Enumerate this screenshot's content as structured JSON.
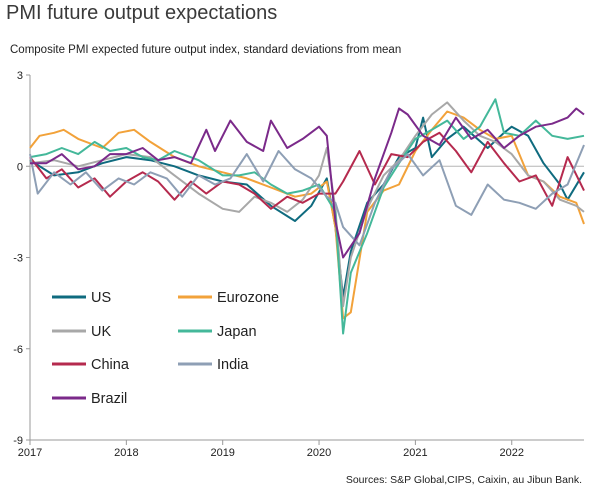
{
  "title": "PMI future output expectations",
  "subtitle": "Composite PMI expected future output index, standard deviations from mean",
  "source": "Sources: S&P Global,CIPS, Caixin, au Jibun Bank.",
  "chart_data": {
    "type": "line",
    "ylim": [
      -9,
      3
    ],
    "yticks": [
      "3",
      "0",
      "-3",
      "-6",
      "-9"
    ],
    "xlim": [
      2017,
      2022.75
    ],
    "xticks": [
      "2017",
      "2018",
      "2019",
      "2020",
      "2021",
      "2022"
    ],
    "legend": "bottom-left",
    "grid": false,
    "series": [
      {
        "name": "US",
        "color": "#0f6b7f",
        "values": [
          [
            2017.0,
            0.2
          ],
          [
            2017.25,
            -0.3
          ],
          [
            2017.5,
            -0.2
          ],
          [
            2017.75,
            0.1
          ],
          [
            2018.0,
            0.3
          ],
          [
            2018.25,
            0.2
          ],
          [
            2018.5,
            0.0
          ],
          [
            2018.75,
            -0.3
          ],
          [
            2019.0,
            -0.5
          ],
          [
            2019.25,
            -0.6
          ],
          [
            2019.5,
            -1.3
          ],
          [
            2019.75,
            -1.8
          ],
          [
            2019.92,
            -1.3
          ],
          [
            2020.08,
            -0.4
          ],
          [
            2020.17,
            -2.0
          ],
          [
            2020.25,
            -4.3
          ],
          [
            2020.33,
            -2.8
          ],
          [
            2020.5,
            -1.2
          ],
          [
            2020.67,
            -0.6
          ],
          [
            2020.83,
            0.3
          ],
          [
            2021.0,
            0.6
          ],
          [
            2021.08,
            1.6
          ],
          [
            2021.17,
            0.3
          ],
          [
            2021.33,
            0.9
          ],
          [
            2021.5,
            1.3
          ],
          [
            2021.75,
            0.6
          ],
          [
            2021.92,
            1.1
          ],
          [
            2022.0,
            1.3
          ],
          [
            2022.17,
            1.0
          ],
          [
            2022.33,
            0.1
          ],
          [
            2022.5,
            -0.6
          ],
          [
            2022.58,
            -1.1
          ],
          [
            2022.75,
            -0.2
          ]
        ]
      },
      {
        "name": "Eurozone",
        "color": "#f2a23a",
        "values": [
          [
            2017.0,
            0.6
          ],
          [
            2017.1,
            1.0
          ],
          [
            2017.25,
            1.1
          ],
          [
            2017.35,
            1.2
          ],
          [
            2017.5,
            0.9
          ],
          [
            2017.75,
            0.6
          ],
          [
            2017.92,
            1.1
          ],
          [
            2018.08,
            1.2
          ],
          [
            2018.25,
            0.8
          ],
          [
            2018.5,
            0.3
          ],
          [
            2018.75,
            0.0
          ],
          [
            2019.0,
            -0.2
          ],
          [
            2019.25,
            -0.4
          ],
          [
            2019.5,
            -0.7
          ],
          [
            2019.75,
            -1.0
          ],
          [
            2019.92,
            -0.9
          ],
          [
            2020.08,
            -0.5
          ],
          [
            2020.17,
            -2.0
          ],
          [
            2020.25,
            -5.0
          ],
          [
            2020.33,
            -4.8
          ],
          [
            2020.5,
            -1.5
          ],
          [
            2020.67,
            -0.8
          ],
          [
            2020.83,
            -0.6
          ],
          [
            2021.0,
            0.5
          ],
          [
            2021.17,
            1.2
          ],
          [
            2021.33,
            1.8
          ],
          [
            2021.5,
            1.6
          ],
          [
            2021.67,
            1.2
          ],
          [
            2021.83,
            0.9
          ],
          [
            2022.0,
            1.0
          ],
          [
            2022.17,
            -0.3
          ],
          [
            2022.33,
            -0.5
          ],
          [
            2022.5,
            -1.0
          ],
          [
            2022.67,
            -1.2
          ],
          [
            2022.75,
            -1.9
          ]
        ]
      },
      {
        "name": "UK",
        "color": "#a8a8a8",
        "values": [
          [
            2017.0,
            0.1
          ],
          [
            2017.25,
            0.2
          ],
          [
            2017.5,
            0.0
          ],
          [
            2017.75,
            0.2
          ],
          [
            2018.0,
            0.4
          ],
          [
            2018.25,
            0.3
          ],
          [
            2018.5,
            -0.3
          ],
          [
            2018.75,
            -0.9
          ],
          [
            2019.0,
            -1.4
          ],
          [
            2019.17,
            -1.5
          ],
          [
            2019.33,
            -1.0
          ],
          [
            2019.5,
            -1.2
          ],
          [
            2019.67,
            -1.5
          ],
          [
            2019.83,
            -1.1
          ],
          [
            2020.0,
            -0.3
          ],
          [
            2020.08,
            0.6
          ],
          [
            2020.17,
            -1.4
          ],
          [
            2020.25,
            -4.6
          ],
          [
            2020.33,
            -3.0
          ],
          [
            2020.5,
            -1.4
          ],
          [
            2020.67,
            -0.3
          ],
          [
            2020.83,
            0.2
          ],
          [
            2021.0,
            1.0
          ],
          [
            2021.17,
            1.7
          ],
          [
            2021.33,
            2.1
          ],
          [
            2021.5,
            1.5
          ],
          [
            2021.67,
            1.0
          ],
          [
            2021.83,
            0.8
          ],
          [
            2022.0,
            0.4
          ],
          [
            2022.17,
            -0.3
          ],
          [
            2022.33,
            -0.5
          ],
          [
            2022.5,
            -1.1
          ],
          [
            2022.67,
            -1.3
          ],
          [
            2022.75,
            -1.5
          ]
        ]
      },
      {
        "name": "Japan",
        "color": "#44b89a",
        "values": [
          [
            2017.0,
            0.3
          ],
          [
            2017.17,
            0.4
          ],
          [
            2017.33,
            0.6
          ],
          [
            2017.5,
            0.4
          ],
          [
            2017.67,
            0.8
          ],
          [
            2017.83,
            0.5
          ],
          [
            2018.0,
            0.6
          ],
          [
            2018.17,
            0.3
          ],
          [
            2018.33,
            0.2
          ],
          [
            2018.5,
            0.5
          ],
          [
            2018.75,
            0.2
          ],
          [
            2019.0,
            -0.3
          ],
          [
            2019.17,
            -0.3
          ],
          [
            2019.33,
            -0.2
          ],
          [
            2019.5,
            -0.6
          ],
          [
            2019.67,
            -0.9
          ],
          [
            2019.83,
            -0.8
          ],
          [
            2020.0,
            -0.6
          ],
          [
            2020.17,
            -1.5
          ],
          [
            2020.25,
            -5.5
          ],
          [
            2020.33,
            -3.5
          ],
          [
            2020.5,
            -2.2
          ],
          [
            2020.67,
            -0.7
          ],
          [
            2020.83,
            0.1
          ],
          [
            2021.0,
            0.9
          ],
          [
            2021.17,
            1.2
          ],
          [
            2021.33,
            1.5
          ],
          [
            2021.5,
            0.9
          ],
          [
            2021.67,
            1.3
          ],
          [
            2021.83,
            2.2
          ],
          [
            2021.92,
            1.1
          ],
          [
            2022.08,
            1.0
          ],
          [
            2022.25,
            1.5
          ],
          [
            2022.42,
            1.0
          ],
          [
            2022.58,
            0.9
          ],
          [
            2022.75,
            1.0
          ]
        ]
      },
      {
        "name": "China",
        "color": "#b52a4e",
        "values": [
          [
            2017.0,
            0.3
          ],
          [
            2017.17,
            -0.4
          ],
          [
            2017.33,
            -0.1
          ],
          [
            2017.5,
            -0.7
          ],
          [
            2017.67,
            -0.4
          ],
          [
            2017.83,
            -1.0
          ],
          [
            2018.0,
            -0.5
          ],
          [
            2018.17,
            -0.2
          ],
          [
            2018.33,
            -0.5
          ],
          [
            2018.5,
            -1.1
          ],
          [
            2018.67,
            -0.5
          ],
          [
            2018.83,
            -0.9
          ],
          [
            2019.0,
            -0.5
          ],
          [
            2019.17,
            -0.6
          ],
          [
            2019.33,
            -0.9
          ],
          [
            2019.5,
            -1.4
          ],
          [
            2019.67,
            -1.0
          ],
          [
            2019.83,
            -1.2
          ],
          [
            2020.0,
            -0.9
          ],
          [
            2020.17,
            -0.9
          ],
          [
            2020.25,
            -0.5
          ],
          [
            2020.42,
            0.5
          ],
          [
            2020.58,
            -0.6
          ],
          [
            2020.75,
            0.4
          ],
          [
            2020.92,
            0.3
          ],
          [
            2021.08,
            0.8
          ],
          [
            2021.25,
            1.1
          ],
          [
            2021.42,
            0.5
          ],
          [
            2021.58,
            -0.2
          ],
          [
            2021.75,
            0.8
          ],
          [
            2021.92,
            0.1
          ],
          [
            2022.08,
            -0.5
          ],
          [
            2022.25,
            -0.3
          ],
          [
            2022.42,
            -1.3
          ],
          [
            2022.58,
            0.3
          ],
          [
            2022.75,
            -0.8
          ]
        ]
      },
      {
        "name": "India",
        "color": "#8e9fb5",
        "values": [
          [
            2017.0,
            0.4
          ],
          [
            2017.08,
            -0.9
          ],
          [
            2017.25,
            -0.2
          ],
          [
            2017.42,
            -0.6
          ],
          [
            2017.58,
            -0.2
          ],
          [
            2017.75,
            -0.8
          ],
          [
            2017.92,
            -0.4
          ],
          [
            2018.08,
            -0.6
          ],
          [
            2018.25,
            -0.2
          ],
          [
            2018.42,
            -0.4
          ],
          [
            2018.58,
            -1.0
          ],
          [
            2018.75,
            -0.3
          ],
          [
            2018.92,
            -0.6
          ],
          [
            2019.08,
            -0.4
          ],
          [
            2019.25,
            0.4
          ],
          [
            2019.42,
            -0.5
          ],
          [
            2019.58,
            0.5
          ],
          [
            2019.75,
            -0.1
          ],
          [
            2019.92,
            -0.4
          ],
          [
            2020.08,
            -1.0
          ],
          [
            2020.17,
            -1.2
          ],
          [
            2020.25,
            -2.0
          ],
          [
            2020.42,
            -2.6
          ],
          [
            2020.58,
            -1.2
          ],
          [
            2020.75,
            -0.1
          ],
          [
            2020.92,
            0.4
          ],
          [
            2021.08,
            -0.3
          ],
          [
            2021.25,
            0.2
          ],
          [
            2021.42,
            -1.3
          ],
          [
            2021.58,
            -1.6
          ],
          [
            2021.75,
            -0.6
          ],
          [
            2021.92,
            -1.1
          ],
          [
            2022.08,
            -1.2
          ],
          [
            2022.25,
            -1.4
          ],
          [
            2022.42,
            -0.9
          ],
          [
            2022.58,
            -0.6
          ],
          [
            2022.75,
            0.7
          ]
        ]
      },
      {
        "name": "Brazil",
        "color": "#7b2a8a",
        "values": [
          [
            2017.0,
            0.1
          ],
          [
            2017.17,
            0.1
          ],
          [
            2017.33,
            0.4
          ],
          [
            2017.5,
            -0.1
          ],
          [
            2017.67,
            0.0
          ],
          [
            2017.83,
            0.4
          ],
          [
            2018.0,
            0.4
          ],
          [
            2018.17,
            0.6
          ],
          [
            2018.33,
            0.2
          ],
          [
            2018.5,
            0.3
          ],
          [
            2018.67,
            0.1
          ],
          [
            2018.83,
            1.2
          ],
          [
            2018.92,
            0.5
          ],
          [
            2019.08,
            1.5
          ],
          [
            2019.25,
            0.8
          ],
          [
            2019.42,
            0.5
          ],
          [
            2019.5,
            1.5
          ],
          [
            2019.67,
            0.6
          ],
          [
            2019.83,
            0.9
          ],
          [
            2020.0,
            1.3
          ],
          [
            2020.08,
            1.0
          ],
          [
            2020.17,
            -1.8
          ],
          [
            2020.25,
            -3.0
          ],
          [
            2020.42,
            -2.2
          ],
          [
            2020.58,
            -0.4
          ],
          [
            2020.75,
            1.1
          ],
          [
            2020.83,
            1.9
          ],
          [
            2020.92,
            1.7
          ],
          [
            2021.08,
            1.0
          ],
          [
            2021.25,
            0.7
          ],
          [
            2021.42,
            1.6
          ],
          [
            2021.58,
            0.9
          ],
          [
            2021.75,
            1.2
          ],
          [
            2021.92,
            0.6
          ],
          [
            2022.08,
            1.0
          ],
          [
            2022.25,
            1.3
          ],
          [
            2022.42,
            1.4
          ],
          [
            2022.58,
            1.6
          ],
          [
            2022.67,
            1.9
          ],
          [
            2022.75,
            1.7
          ]
        ]
      }
    ]
  }
}
